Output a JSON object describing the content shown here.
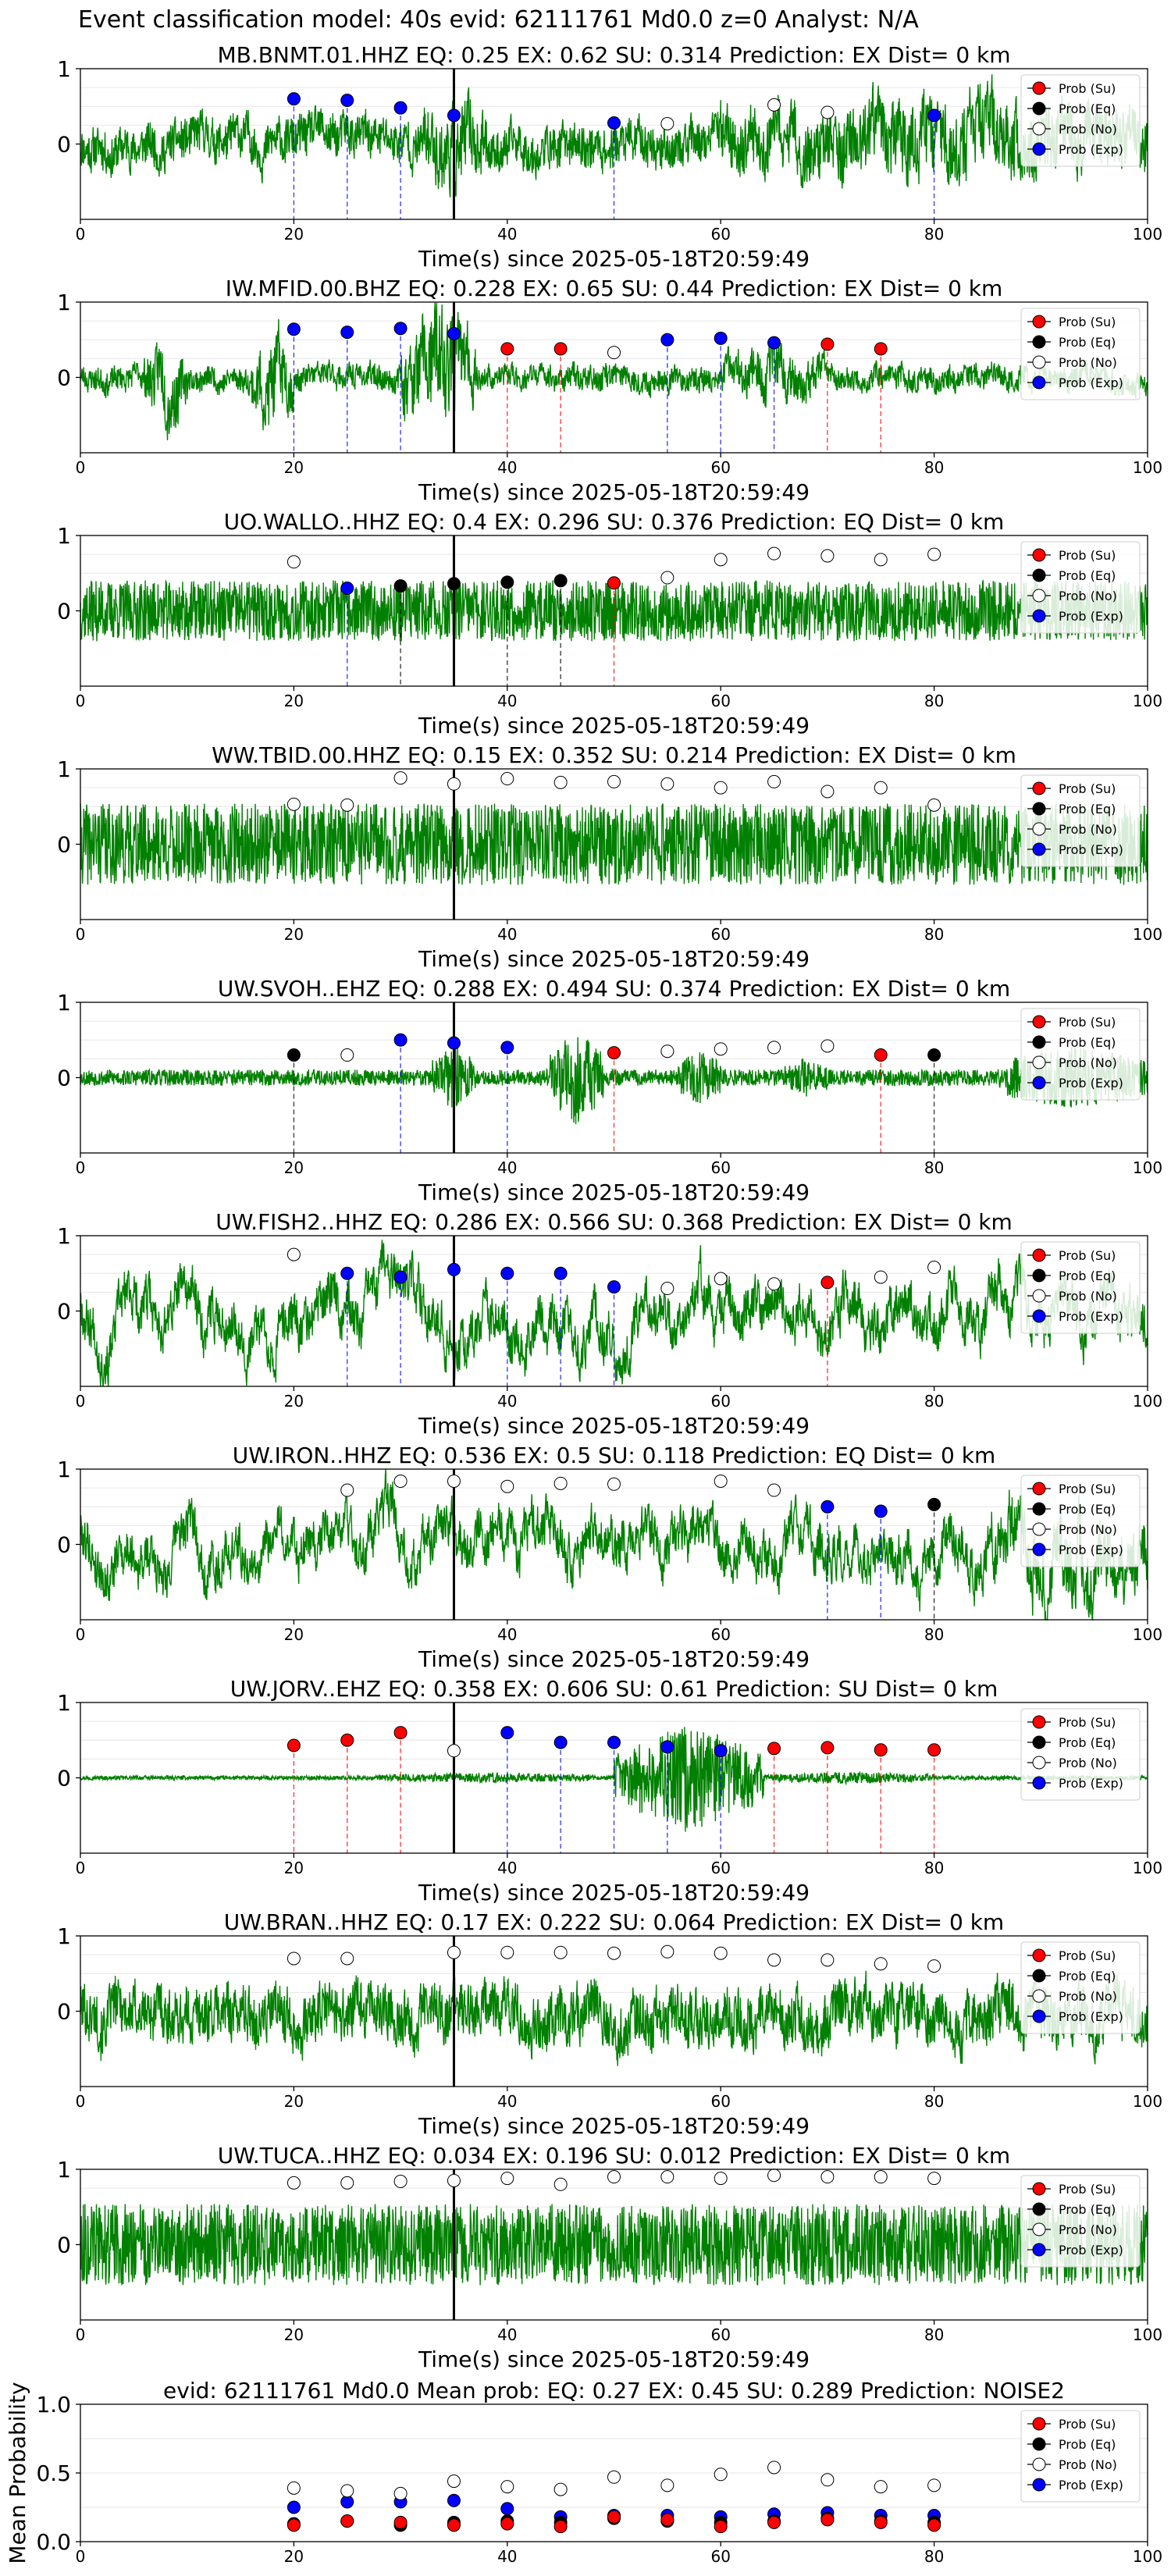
{
  "figure_title": "Event classification model: 40s evid: 62111761 Md0.0 z=0 Analyst: N/A",
  "legend_labels": [
    "Prob (Su)",
    "Prob (Eq)",
    "Prob (No)",
    "Prob (Exp)"
  ],
  "class_colors": {
    "Su": "#ff0000",
    "Eq": "#000000",
    "No": "#ffffff",
    "Exp": "#0000ff"
  },
  "line_colors": {
    "waveform": "#008000",
    "marker": "#000000",
    "Su": "#ff0000",
    "Eq": "#000000",
    "Exp": "#0000ff"
  },
  "chart_data": [
    {
      "type": "line",
      "title": "MB.BNMT.01.HHZ   EQ: 0.25  EX: 0.62  SU: 0.314   Prediction: EX    Dist= 0 km",
      "xlabel": "Time(s) since 2025-05-18T20:59:49",
      "xlim": [
        0,
        100
      ],
      "ylim": [
        -1,
        1
      ],
      "xticks": [
        0,
        20,
        40,
        60,
        80,
        100
      ],
      "yticks": [
        0,
        1
      ],
      "marker_x": 35,
      "points": [
        {
          "t": 20,
          "p": 0.6,
          "c": "Exp"
        },
        {
          "t": 25,
          "p": 0.58,
          "c": "Exp"
        },
        {
          "t": 30,
          "p": 0.48,
          "c": "Exp"
        },
        {
          "t": 35,
          "p": 0.38,
          "c": "Exp"
        },
        {
          "t": 50,
          "p": 0.28,
          "c": "Exp"
        },
        {
          "t": 55,
          "p": 0.27,
          "c": "No"
        },
        {
          "t": 65,
          "p": 0.52,
          "c": "No"
        },
        {
          "t": 70,
          "p": 0.42,
          "c": "No"
        },
        {
          "t": 80,
          "p": 0.38,
          "c": "Exp"
        }
      ],
      "waveform": {
        "seed": 11,
        "amp": 0.35,
        "style": "mixed",
        "bursts": [
          [
            60,
            100,
            1.8
          ],
          [
            32,
            38,
            2.0
          ]
        ]
      }
    },
    {
      "type": "line",
      "title": "IW.MFID.00.BHZ   EQ: 0.228  EX: 0.65  SU: 0.44   Prediction: EX    Dist= 0 km",
      "xlabel": "Time(s) since 2025-05-18T20:59:49",
      "xlim": [
        0,
        100
      ],
      "ylim": [
        -1,
        1
      ],
      "xticks": [
        0,
        20,
        40,
        60,
        80,
        100
      ],
      "yticks": [
        0,
        1
      ],
      "marker_x": 35,
      "points": [
        {
          "t": 20,
          "p": 0.64,
          "c": "Exp"
        },
        {
          "t": 25,
          "p": 0.6,
          "c": "Exp"
        },
        {
          "t": 30,
          "p": 0.65,
          "c": "Exp"
        },
        {
          "t": 35,
          "p": 0.58,
          "c": "Exp"
        },
        {
          "t": 40,
          "p": 0.38,
          "c": "Su"
        },
        {
          "t": 45,
          "p": 0.38,
          "c": "Su"
        },
        {
          "t": 50,
          "p": 0.33,
          "c": "No"
        },
        {
          "t": 55,
          "p": 0.5,
          "c": "Exp"
        },
        {
          "t": 60,
          "p": 0.52,
          "c": "Exp"
        },
        {
          "t": 65,
          "p": 0.46,
          "c": "Exp"
        },
        {
          "t": 70,
          "p": 0.44,
          "c": "Su"
        },
        {
          "t": 75,
          "p": 0.38,
          "c": "Su"
        }
      ],
      "waveform": {
        "seed": 23,
        "amp": 0.2,
        "style": "mixed",
        "bursts": [
          [
            6,
            10,
            3.0
          ],
          [
            16,
            20,
            3.5
          ],
          [
            30,
            37,
            4.5
          ],
          [
            60,
            70,
            2.0
          ]
        ]
      }
    },
    {
      "type": "line",
      "title": "UO.WALLO..HHZ   EQ: 0.4  EX: 0.296  SU: 0.376   Prediction: EQ    Dist= 0 km",
      "xlabel": "Time(s) since 2025-05-18T20:59:49",
      "xlim": [
        0,
        100
      ],
      "ylim": [
        -1,
        1
      ],
      "xticks": [
        0,
        20,
        40,
        60,
        80,
        100
      ],
      "yticks": [
        0,
        1
      ],
      "marker_x": 35,
      "points": [
        {
          "t": 20,
          "p": 0.65,
          "c": "No"
        },
        {
          "t": 25,
          "p": 0.3,
          "c": "Exp"
        },
        {
          "t": 30,
          "p": 0.33,
          "c": "Eq"
        },
        {
          "t": 35,
          "p": 0.36,
          "c": "Eq"
        },
        {
          "t": 40,
          "p": 0.38,
          "c": "Eq"
        },
        {
          "t": 45,
          "p": 0.4,
          "c": "Eq"
        },
        {
          "t": 50,
          "p": 0.37,
          "c": "Su"
        },
        {
          "t": 55,
          "p": 0.44,
          "c": "No"
        },
        {
          "t": 60,
          "p": 0.68,
          "c": "No"
        },
        {
          "t": 65,
          "p": 0.76,
          "c": "No"
        },
        {
          "t": 70,
          "p": 0.73,
          "c": "No"
        },
        {
          "t": 75,
          "p": 0.68,
          "c": "No"
        },
        {
          "t": 80,
          "p": 0.75,
          "c": "No"
        }
      ],
      "waveform": {
        "seed": 37,
        "amp": 0.45,
        "style": "noise",
        "bursts": []
      }
    },
    {
      "type": "line",
      "title": "WW.TBID.00.HHZ   EQ: 0.15  EX: 0.352  SU: 0.214   Prediction: EX    Dist= 0 km",
      "xlabel": "Time(s) since 2025-05-18T20:59:49",
      "xlim": [
        0,
        100
      ],
      "ylim": [
        -1,
        1
      ],
      "xticks": [
        0,
        20,
        40,
        60,
        80,
        100
      ],
      "yticks": [
        0,
        1
      ],
      "marker_x": 35,
      "points": [
        {
          "t": 20,
          "p": 0.53,
          "c": "No"
        },
        {
          "t": 25,
          "p": 0.52,
          "c": "No"
        },
        {
          "t": 30,
          "p": 0.88,
          "c": "No"
        },
        {
          "t": 35,
          "p": 0.8,
          "c": "No"
        },
        {
          "t": 40,
          "p": 0.87,
          "c": "No"
        },
        {
          "t": 45,
          "p": 0.82,
          "c": "No"
        },
        {
          "t": 50,
          "p": 0.83,
          "c": "No"
        },
        {
          "t": 55,
          "p": 0.8,
          "c": "No"
        },
        {
          "t": 60,
          "p": 0.75,
          "c": "No"
        },
        {
          "t": 65,
          "p": 0.83,
          "c": "No"
        },
        {
          "t": 70,
          "p": 0.7,
          "c": "No"
        },
        {
          "t": 75,
          "p": 0.75,
          "c": "No"
        },
        {
          "t": 80,
          "p": 0.52,
          "c": "No"
        }
      ],
      "waveform": {
        "seed": 41,
        "amp": 0.6,
        "style": "noise",
        "bursts": []
      }
    },
    {
      "type": "line",
      "title": "UW.SVOH..EHZ   EQ: 0.288  EX: 0.494  SU: 0.374   Prediction: EX    Dist= 0 km",
      "xlabel": "Time(s) since 2025-05-18T20:59:49",
      "xlim": [
        0,
        100
      ],
      "ylim": [
        -1,
        1
      ],
      "xticks": [
        0,
        20,
        40,
        60,
        80,
        100
      ],
      "yticks": [
        0,
        1
      ],
      "marker_x": 35,
      "points": [
        {
          "t": 20,
          "p": 0.3,
          "c": "Eq"
        },
        {
          "t": 25,
          "p": 0.3,
          "c": "No"
        },
        {
          "t": 30,
          "p": 0.5,
          "c": "Exp"
        },
        {
          "t": 35,
          "p": 0.46,
          "c": "Exp"
        },
        {
          "t": 40,
          "p": 0.4,
          "c": "Exp"
        },
        {
          "t": 50,
          "p": 0.33,
          "c": "Su"
        },
        {
          "t": 55,
          "p": 0.35,
          "c": "No"
        },
        {
          "t": 60,
          "p": 0.38,
          "c": "No"
        },
        {
          "t": 65,
          "p": 0.4,
          "c": "No"
        },
        {
          "t": 70,
          "p": 0.42,
          "c": "No"
        },
        {
          "t": 75,
          "p": 0.3,
          "c": "Su"
        },
        {
          "t": 80,
          "p": 0.3,
          "c": "Eq"
        }
      ],
      "waveform": {
        "seed": 53,
        "amp": 0.12,
        "style": "noise",
        "bursts": [
          [
            33,
            37,
            4.0
          ],
          [
            44,
            49,
            6.0
          ],
          [
            56,
            60,
            3.5
          ],
          [
            66,
            70,
            2.5
          ],
          [
            86,
            100,
            4.0
          ]
        ]
      }
    },
    {
      "type": "line",
      "title": "UW.FISH2..HHZ   EQ: 0.286  EX: 0.566  SU: 0.368   Prediction: EX    Dist= 0 km",
      "xlabel": "Time(s) since 2025-05-18T20:59:49",
      "xlim": [
        0,
        100
      ],
      "ylim": [
        -1,
        1
      ],
      "xticks": [
        0,
        20,
        40,
        60,
        80,
        100
      ],
      "yticks": [
        0,
        1
      ],
      "marker_x": 35,
      "points": [
        {
          "t": 20,
          "p": 0.75,
          "c": "No"
        },
        {
          "t": 25,
          "p": 0.5,
          "c": "Exp"
        },
        {
          "t": 30,
          "p": 0.45,
          "c": "Exp"
        },
        {
          "t": 35,
          "p": 0.55,
          "c": "Exp"
        },
        {
          "t": 40,
          "p": 0.5,
          "c": "Exp"
        },
        {
          "t": 45,
          "p": 0.5,
          "c": "Exp"
        },
        {
          "t": 50,
          "p": 0.32,
          "c": "Exp"
        },
        {
          "t": 55,
          "p": 0.3,
          "c": "No"
        },
        {
          "t": 60,
          "p": 0.43,
          "c": "No"
        },
        {
          "t": 65,
          "p": 0.36,
          "c": "No"
        },
        {
          "t": 70,
          "p": 0.38,
          "c": "Su"
        },
        {
          "t": 75,
          "p": 0.45,
          "c": "No"
        },
        {
          "t": 80,
          "p": 0.58,
          "c": "No"
        }
      ],
      "waveform": {
        "seed": 67,
        "amp": 0.45,
        "style": "slow",
        "bursts": []
      }
    },
    {
      "type": "line",
      "title": "UW.IRON..HHZ   EQ: 0.536  EX: 0.5  SU: 0.118   Prediction: EQ    Dist= 0 km",
      "xlabel": "Time(s) since 2025-05-18T20:59:49",
      "xlim": [
        0,
        100
      ],
      "ylim": [
        -1,
        1
      ],
      "xticks": [
        0,
        20,
        40,
        60,
        80,
        100
      ],
      "yticks": [
        0,
        1
      ],
      "marker_x": 35,
      "points": [
        {
          "t": 25,
          "p": 0.72,
          "c": "No"
        },
        {
          "t": 30,
          "p": 0.84,
          "c": "No"
        },
        {
          "t": 35,
          "p": 0.84,
          "c": "No"
        },
        {
          "t": 40,
          "p": 0.77,
          "c": "No"
        },
        {
          "t": 45,
          "p": 0.81,
          "c": "No"
        },
        {
          "t": 50,
          "p": 0.8,
          "c": "No"
        },
        {
          "t": 60,
          "p": 0.84,
          "c": "No"
        },
        {
          "t": 65,
          "p": 0.72,
          "c": "No"
        },
        {
          "t": 70,
          "p": 0.5,
          "c": "Exp"
        },
        {
          "t": 75,
          "p": 0.44,
          "c": "Exp"
        },
        {
          "t": 80,
          "p": 0.53,
          "c": "Eq"
        }
      ],
      "waveform": {
        "seed": 79,
        "amp": 0.45,
        "style": "slow",
        "bursts": [
          [
            85,
            100,
            1.6
          ]
        ]
      }
    },
    {
      "type": "line",
      "title": "UW.JORV..EHZ   EQ: 0.358  EX: 0.606  SU: 0.61   Prediction: SU    Dist= 0 km",
      "xlabel": "Time(s) since 2025-05-18T20:59:49",
      "xlim": [
        0,
        100
      ],
      "ylim": [
        -1,
        1
      ],
      "xticks": [
        0,
        20,
        40,
        60,
        80,
        100
      ],
      "yticks": [
        0,
        1
      ],
      "marker_x": 35,
      "points": [
        {
          "t": 20,
          "p": 0.43,
          "c": "Su"
        },
        {
          "t": 25,
          "p": 0.5,
          "c": "Su"
        },
        {
          "t": 30,
          "p": 0.6,
          "c": "Su"
        },
        {
          "t": 35,
          "p": 0.36,
          "c": "No"
        },
        {
          "t": 40,
          "p": 0.6,
          "c": "Exp"
        },
        {
          "t": 45,
          "p": 0.47,
          "c": "Exp"
        },
        {
          "t": 50,
          "p": 0.47,
          "c": "Exp"
        },
        {
          "t": 55,
          "p": 0.41,
          "c": "Exp"
        },
        {
          "t": 60,
          "p": 0.36,
          "c": "Exp"
        },
        {
          "t": 65,
          "p": 0.39,
          "c": "Su"
        },
        {
          "t": 70,
          "p": 0.4,
          "c": "Su"
        },
        {
          "t": 75,
          "p": 0.37,
          "c": "Su"
        },
        {
          "t": 80,
          "p": 0.37,
          "c": "Su"
        }
      ],
      "waveform": {
        "seed": 97,
        "amp": 0.03,
        "style": "noise",
        "bursts": [
          [
            28,
            48,
            2.5
          ],
          [
            50,
            64,
            28.0
          ],
          [
            64,
            80,
            3.0
          ]
        ]
      }
    },
    {
      "type": "line",
      "title": "UW.BRAN..HHZ   EQ: 0.17  EX: 0.222  SU: 0.064   Prediction: EX    Dist= 0 km",
      "xlabel": "Time(s) since 2025-05-18T20:59:49",
      "xlim": [
        0,
        100
      ],
      "ylim": [
        -1,
        1
      ],
      "xticks": [
        0,
        20,
        40,
        60,
        80,
        100
      ],
      "yticks": [
        0,
        1
      ],
      "marker_x": 35,
      "points": [
        {
          "t": 20,
          "p": 0.7,
          "c": "No"
        },
        {
          "t": 25,
          "p": 0.7,
          "c": "No"
        },
        {
          "t": 35,
          "p": 0.78,
          "c": "No"
        },
        {
          "t": 40,
          "p": 0.78,
          "c": "No"
        },
        {
          "t": 45,
          "p": 0.78,
          "c": "No"
        },
        {
          "t": 50,
          "p": 0.77,
          "c": "No"
        },
        {
          "t": 55,
          "p": 0.79,
          "c": "No"
        },
        {
          "t": 60,
          "p": 0.77,
          "c": "No"
        },
        {
          "t": 65,
          "p": 0.68,
          "c": "No"
        },
        {
          "t": 70,
          "p": 0.68,
          "c": "No"
        },
        {
          "t": 75,
          "p": 0.63,
          "c": "No"
        },
        {
          "t": 80,
          "p": 0.6,
          "c": "No"
        }
      ],
      "waveform": {
        "seed": 101,
        "amp": 0.45,
        "style": "mixed",
        "bursts": []
      }
    },
    {
      "type": "line",
      "title": "UW.TUCA..HHZ   EQ: 0.034  EX: 0.196  SU: 0.012   Prediction: EX    Dist= 0 km",
      "xlabel": "Time(s) since 2025-05-18T20:59:49",
      "xlim": [
        0,
        100
      ],
      "ylim": [
        -1,
        1
      ],
      "xticks": [
        0,
        20,
        40,
        60,
        80,
        100
      ],
      "yticks": [
        0,
        1
      ],
      "marker_x": 35,
      "points": [
        {
          "t": 20,
          "p": 0.82,
          "c": "No"
        },
        {
          "t": 25,
          "p": 0.82,
          "c": "No"
        },
        {
          "t": 30,
          "p": 0.84,
          "c": "No"
        },
        {
          "t": 35,
          "p": 0.85,
          "c": "No"
        },
        {
          "t": 40,
          "p": 0.88,
          "c": "No"
        },
        {
          "t": 45,
          "p": 0.8,
          "c": "No"
        },
        {
          "t": 50,
          "p": 0.9,
          "c": "No"
        },
        {
          "t": 55,
          "p": 0.9,
          "c": "No"
        },
        {
          "t": 60,
          "p": 0.88,
          "c": "No"
        },
        {
          "t": 65,
          "p": 0.92,
          "c": "No"
        },
        {
          "t": 70,
          "p": 0.9,
          "c": "No"
        },
        {
          "t": 75,
          "p": 0.9,
          "c": "No"
        },
        {
          "t": 80,
          "p": 0.88,
          "c": "No"
        }
      ],
      "waveform": {
        "seed": 113,
        "amp": 0.6,
        "style": "noise",
        "bursts": []
      }
    },
    {
      "type": "scatter",
      "title": "evid: 62111761  Md0.0   Mean prob:   EQ: 0.27  EX: 0.45  SU: 0.289   Prediction: NOISE2",
      "ylabel": "Mean Probability",
      "xlim": [
        0,
        100
      ],
      "ylim": [
        0,
        1
      ],
      "xticks": [
        0,
        20,
        40,
        60,
        80,
        100
      ],
      "yticks": [
        0.0,
        0.5,
        1.0
      ],
      "x": [
        20,
        25,
        30,
        35,
        40,
        45,
        50,
        55,
        60,
        65,
        70,
        75,
        80
      ],
      "series": [
        {
          "name": "Prob (Su)",
          "c": "Su",
          "values": [
            0.12,
            0.15,
            0.14,
            0.12,
            0.13,
            0.11,
            0.18,
            0.16,
            0.11,
            0.14,
            0.16,
            0.14,
            0.12
          ]
        },
        {
          "name": "Prob (Eq)",
          "c": "Eq",
          "values": [
            0.13,
            0.15,
            0.12,
            0.14,
            0.15,
            0.14,
            0.17,
            0.15,
            0.14,
            0.15,
            0.17,
            0.15,
            0.14
          ]
        },
        {
          "name": "Prob (No)",
          "c": "No",
          "values": [
            0.39,
            0.37,
            0.35,
            0.44,
            0.4,
            0.38,
            0.47,
            0.41,
            0.49,
            0.54,
            0.45,
            0.4,
            0.41
          ]
        },
        {
          "name": "Prob (Exp)",
          "c": "Exp",
          "values": [
            0.25,
            0.29,
            0.29,
            0.3,
            0.24,
            0.18,
            0.19,
            0.19,
            0.18,
            0.2,
            0.21,
            0.19,
            0.19
          ]
        }
      ]
    }
  ]
}
